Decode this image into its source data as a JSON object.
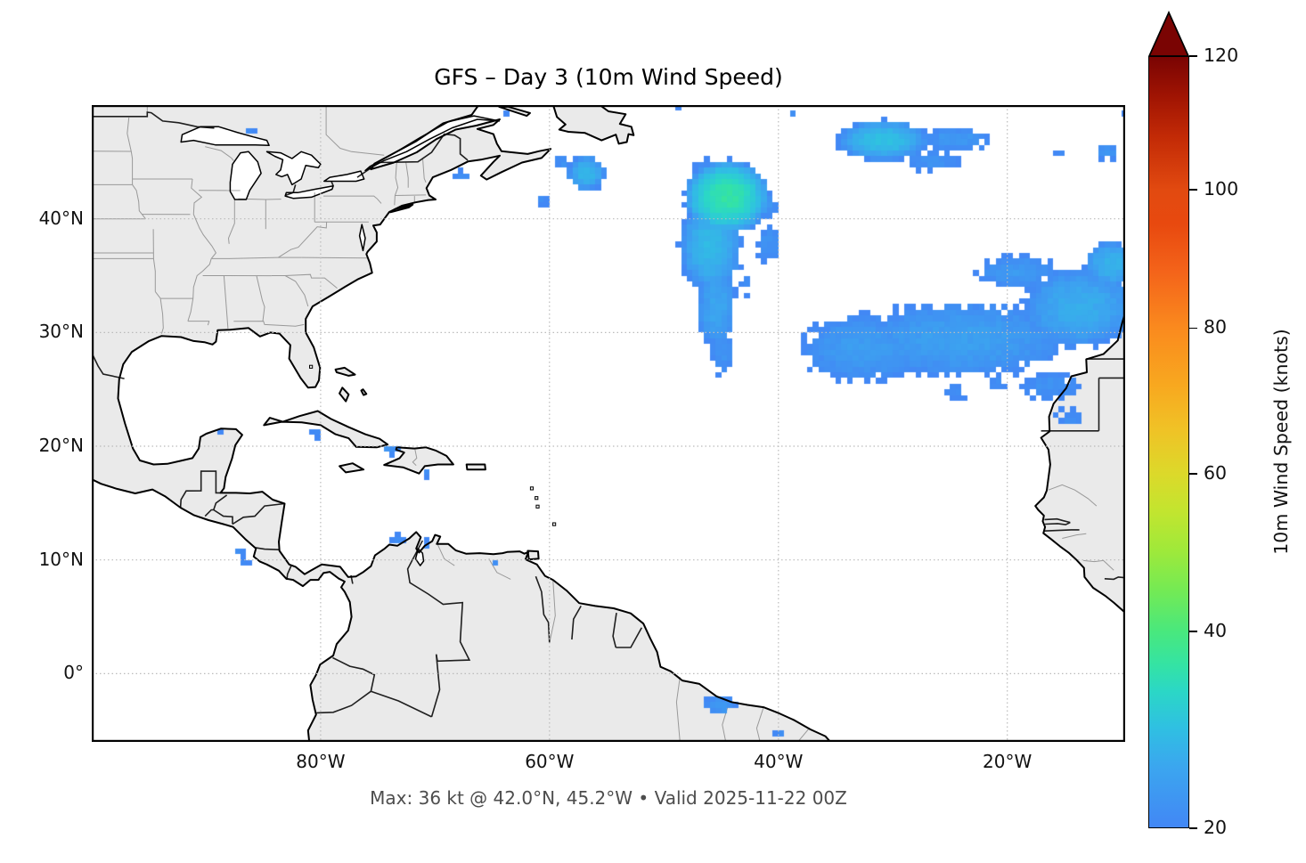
{
  "figure": {
    "title": "GFS – Day 3 (10m Wind Speed)",
    "caption": "Max: 36 kt @ 42.0°N, 45.2°W • Valid 2025-11-22 00Z",
    "background": "#ffffff"
  },
  "map": {
    "extent": {
      "lon_min": -100,
      "lon_max": -9.7,
      "lat_min": -6,
      "lat_max": 50
    },
    "xticks": [
      {
        "label": "80°W",
        "lon": -80
      },
      {
        "label": "60°W",
        "lon": -60
      },
      {
        "label": "40°W",
        "lon": -40
      },
      {
        "label": "20°W",
        "lon": -20
      }
    ],
    "yticks": [
      {
        "label": "40°N",
        "lat": 40
      },
      {
        "label": "30°N",
        "lat": 30
      },
      {
        "label": "20°N",
        "lat": 20
      },
      {
        "label": "10°N",
        "lat": 10
      },
      {
        "label": "0°",
        "lat": 0
      }
    ],
    "gridline_lons": [
      -80,
      -60,
      -40,
      -20
    ],
    "gridline_lats": [
      40,
      30,
      20,
      10,
      0
    ],
    "colors": {
      "ocean": "#ffffff",
      "land": "#eaeaea",
      "coastline": "#000000",
      "state_border": "#999999",
      "country_border": "#1f1f1f",
      "gridline": "#bbbbbb",
      "tick_text": "#111111",
      "caption_text": "#4d4d4d"
    }
  },
  "colorbar": {
    "label": "10m Wind Speed (knots)",
    "tick_values": [
      20,
      40,
      60,
      80,
      100,
      120
    ],
    "tick_labels": [
      "20",
      "40",
      "60",
      "80",
      "100",
      "120"
    ],
    "vmin": 20,
    "vmax": 120,
    "gamma": 0.85,
    "extend": "max",
    "arrow_color": "#7a0403",
    "stops": [
      [
        20,
        "#4287f5"
      ],
      [
        25,
        "#3ba6ef"
      ],
      [
        29,
        "#2fc0e2"
      ],
      [
        33,
        "#2bd7c6"
      ],
      [
        36,
        "#34e3a4"
      ],
      [
        40,
        "#49e87d"
      ],
      [
        45,
        "#74ea54"
      ],
      [
        50,
        "#9fe93a"
      ],
      [
        55,
        "#c2e52f"
      ],
      [
        60,
        "#dcd92a"
      ],
      [
        66,
        "#f0c226"
      ],
      [
        72,
        "#f8a81f"
      ],
      [
        80,
        "#fa8a1e"
      ],
      [
        88,
        "#f4641a"
      ],
      [
        95,
        "#e8490f"
      ],
      [
        100,
        "#e24a10"
      ],
      [
        108,
        "#c22a06"
      ],
      [
        114,
        "#a01403"
      ],
      [
        120,
        "#7a0403"
      ]
    ]
  },
  "chart_data": {
    "type": "heatmap",
    "title": "GFS – Day 3 (10m Wind Speed)",
    "units": "knots",
    "valid": "2025-11-22 00Z",
    "max_annotation": {
      "value_kt": 36,
      "lat": "42.0°N",
      "lon": "45.2°W"
    },
    "extent": {
      "lon_min": -100,
      "lon_max": -9.7,
      "lat_min": -6,
      "lat_max": 50
    },
    "grid_cell_deg": 0.5,
    "threshold_kt": 20,
    "patch_format": [
      "center_lon",
      "center_lat",
      "radius_lon_deg",
      "radius_lat_deg",
      "peak_knots"
    ],
    "patches": [
      [
        -44.5,
        41.9,
        3.1,
        2.7,
        36
      ],
      [
        -46.6,
        43.0,
        1.1,
        1.9,
        22
      ],
      [
        -45.9,
        37.6,
        2.3,
        3.4,
        28
      ],
      [
        -45.4,
        32.3,
        1.5,
        3.2,
        25
      ],
      [
        -44.9,
        28.4,
        0.9,
        2.2,
        22
      ],
      [
        -41.6,
        41.2,
        1.5,
        1.1,
        23
      ],
      [
        -40.9,
        37.9,
        0.9,
        1.7,
        22
      ],
      [
        -43.0,
        34.5,
        0.7,
        1.2,
        21
      ],
      [
        -30.9,
        46.9,
        3.3,
        1.5,
        29
      ],
      [
        -24.6,
        47.0,
        2.6,
        0.9,
        23
      ],
      [
        -26.6,
        45.1,
        2.3,
        0.8,
        22
      ],
      [
        -21.9,
        46.4,
        0.8,
        0.5,
        21
      ],
      [
        -11.2,
        45.9,
        1.0,
        0.75,
        22
      ],
      [
        -15.4,
        45.8,
        0.35,
        0.3,
        21
      ],
      [
        -10.4,
        47.3,
        0.45,
        0.4,
        21
      ],
      [
        -10.0,
        49.3,
        0.35,
        0.3,
        21
      ],
      [
        -56.8,
        44.0,
        1.4,
        1.3,
        27.5
      ],
      [
        -58.9,
        45.0,
        0.7,
        0.5,
        22
      ],
      [
        -60.6,
        41.6,
        0.5,
        0.4,
        21
      ],
      [
        -49.3,
        49.8,
        0.6,
        0.4,
        21
      ],
      [
        -38.7,
        49.4,
        0.4,
        0.4,
        21
      ],
      [
        -67.7,
        43.8,
        0.6,
        0.5,
        22
      ],
      [
        -86.2,
        47.7,
        0.4,
        0.35,
        21
      ],
      [
        -63.9,
        49.4,
        0.3,
        0.3,
        21
      ],
      [
        -24.0,
        29.4,
        8.6,
        2.9,
        24
      ],
      [
        -13.6,
        32.2,
        4.4,
        3.0,
        26
      ],
      [
        -32.6,
        28.7,
        4.7,
        2.7,
        23.5
      ],
      [
        -19.0,
        35.3,
        3.3,
        1.3,
        23
      ],
      [
        -10.9,
        36.0,
        2.0,
        1.7,
        27
      ],
      [
        -16.2,
        25.3,
        2.3,
        1.1,
        22
      ],
      [
        -14.6,
        22.6,
        1.3,
        0.8,
        21
      ],
      [
        -24.3,
        24.9,
        1.1,
        0.7,
        21
      ],
      [
        -20.9,
        25.6,
        0.9,
        0.6,
        21
      ],
      [
        -80.3,
        21.2,
        0.5,
        0.4,
        21
      ],
      [
        -89.2,
        21.3,
        0.5,
        0.35,
        21
      ],
      [
        -73.9,
        19.7,
        1.0,
        0.5,
        22
      ],
      [
        -70.9,
        17.7,
        0.5,
        0.4,
        21
      ],
      [
        -73.2,
        11.9,
        0.6,
        0.4,
        21
      ],
      [
        -70.8,
        11.5,
        0.5,
        0.35,
        21
      ],
      [
        -64.9,
        9.9,
        0.4,
        0.35,
        21
      ],
      [
        -87.1,
        10.7,
        0.4,
        0.35,
        21
      ],
      [
        -86.6,
        9.9,
        0.4,
        0.35,
        21
      ],
      [
        -45.1,
        -2.8,
        1.3,
        0.8,
        23
      ],
      [
        -39.9,
        -5.3,
        0.6,
        0.4,
        21
      ]
    ]
  }
}
